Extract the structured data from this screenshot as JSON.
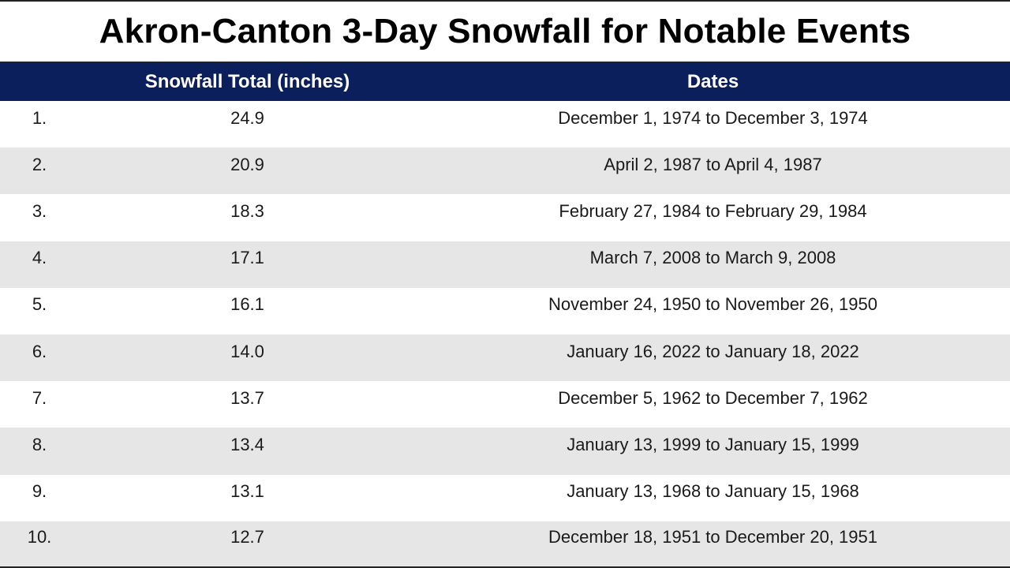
{
  "title": "Akron-Canton 3-Day Snowfall for Notable Events",
  "colors": {
    "header_bg": "#0b1f5c",
    "header_text": "#ffffff",
    "row_alt_bg": "#e6e6e6",
    "row_bg": "#ffffff"
  },
  "chart_data": {
    "type": "table",
    "title": "Akron-Canton 3-Day Snowfall for Notable Events",
    "columns": [
      "",
      "Snowfall Total (inches)",
      "Dates"
    ],
    "rows": [
      {
        "rank": "1.",
        "total": "24.9",
        "dates": "December 1, 1974 to December 3, 1974"
      },
      {
        "rank": "2.",
        "total": "20.9",
        "dates": "April 2, 1987 to April 4, 1987"
      },
      {
        "rank": "3.",
        "total": "18.3",
        "dates": "February 27, 1984 to February 29, 1984"
      },
      {
        "rank": "4.",
        "total": "17.1",
        "dates": "March 7, 2008 to March 9, 2008"
      },
      {
        "rank": "5.",
        "total": "16.1",
        "dates": "November 24, 1950 to November 26, 1950"
      },
      {
        "rank": "6.",
        "total": "14.0",
        "dates": "January 16, 2022 to January 18, 2022"
      },
      {
        "rank": "7.",
        "total": "13.7",
        "dates": "December 5, 1962 to December 7, 1962"
      },
      {
        "rank": "8.",
        "total": "13.4",
        "dates": "January 13, 1999 to January 15, 1999"
      },
      {
        "rank": "9.",
        "total": "13.1",
        "dates": "January 13, 1968 to January 15, 1968"
      },
      {
        "rank": "10.",
        "total": "12.7",
        "dates": "December 18, 1951 to December 20, 1951"
      }
    ]
  }
}
